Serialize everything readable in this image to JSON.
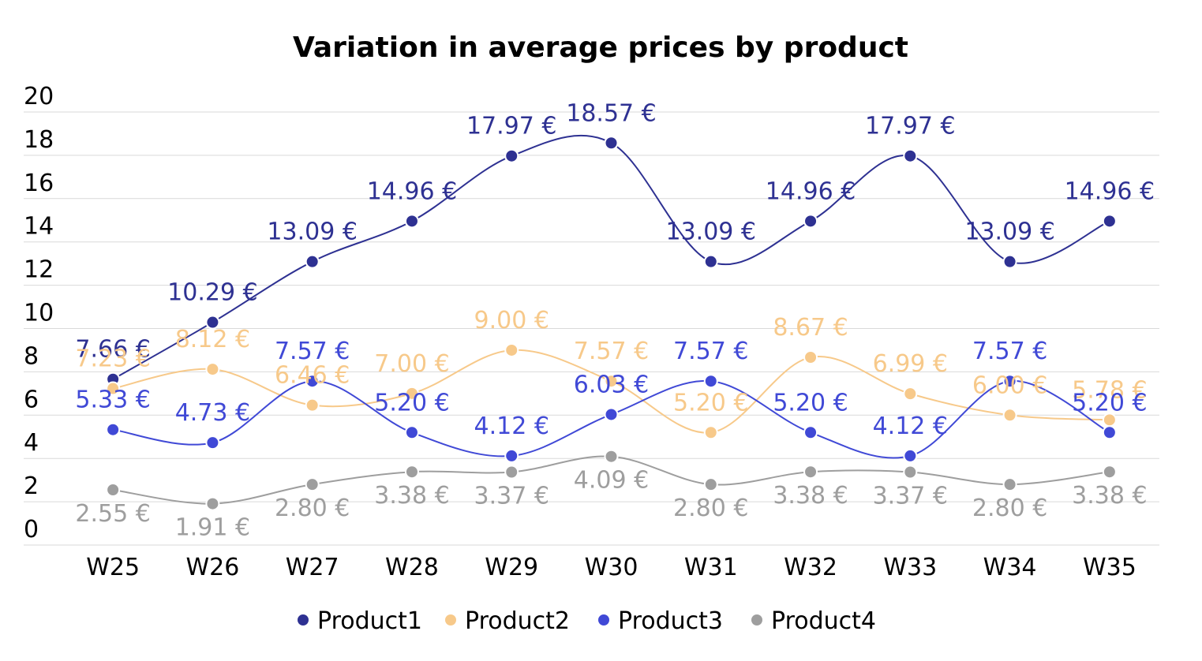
{
  "chart_data": {
    "type": "line",
    "title": "Variation in average prices by product",
    "xlabel": "",
    "ylabel": "",
    "categories": [
      "W25",
      "W26",
      "W27",
      "W28",
      "W29",
      "W30",
      "W31",
      "W32",
      "W33",
      "W34",
      "W35"
    ],
    "ylim": [
      0,
      20
    ],
    "yticks": [
      "0",
      "2",
      "4",
      "6",
      "8",
      "10",
      "12",
      "14",
      "16",
      "18",
      "20"
    ],
    "grid": true,
    "smooth": true,
    "legend_position": "bottom",
    "series": [
      {
        "name": "Product1",
        "color": "#2e3192",
        "values": [
          7.66,
          10.29,
          13.09,
          14.96,
          17.97,
          18.57,
          13.09,
          14.96,
          17.97,
          13.09,
          14.96
        ],
        "labels": [
          "7.66 €",
          "10.29 €",
          "13.09 €",
          "14.96 €",
          "17.97 €",
          "18.57 €",
          "13.09 €",
          "14.96 €",
          "17.97 €",
          "13.09 €",
          "14.96 €"
        ]
      },
      {
        "name": "Product2",
        "color": "#f7c98a",
        "values": [
          7.23,
          8.12,
          6.46,
          7.0,
          9.0,
          7.57,
          5.2,
          8.67,
          6.99,
          6.0,
          5.78
        ],
        "labels": [
          "7.23 €",
          "8.12 €",
          "6.46 €",
          "7.00 €",
          "9.00 €",
          "7.57 €",
          "5.20 €",
          "8.67 €",
          "6.99 €",
          "6.00 €",
          "5.78 €"
        ]
      },
      {
        "name": "Product3",
        "color": "#4049d6",
        "values": [
          5.33,
          4.73,
          7.57,
          5.2,
          4.12,
          6.03,
          7.57,
          5.2,
          4.12,
          7.57,
          5.2
        ],
        "labels": [
          "5.33 €",
          "4.73 €",
          "7.57 €",
          "5.20 €",
          "4.12 €",
          "6.03 €",
          "7.57 €",
          "5.20 €",
          "4.12 €",
          "7.57 €",
          "5.20 €"
        ]
      },
      {
        "name": "Product4",
        "color": "#9e9e9e",
        "values": [
          2.55,
          1.91,
          2.8,
          3.38,
          3.37,
          4.09,
          2.8,
          3.38,
          3.37,
          2.8,
          3.38
        ],
        "labels": [
          "2.55 €",
          "1.91 €",
          "2.80 €",
          "3.38 €",
          "3.37 €",
          "4.09 €",
          "2.80 €",
          "3.38 €",
          "3.37 €",
          "2.80 €",
          "3.38 €"
        ]
      }
    ]
  }
}
